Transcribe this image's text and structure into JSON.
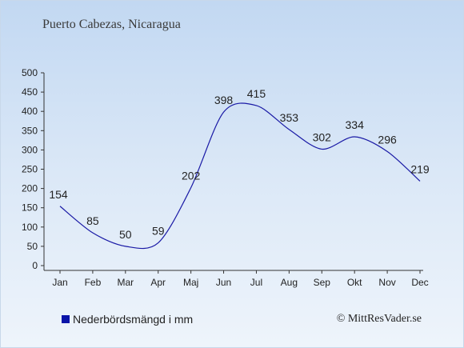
{
  "chart_data": {
    "type": "line",
    "title": "Puerto Cabezas, Nicaragua",
    "categories": [
      "Jan",
      "Feb",
      "Mar",
      "Apr",
      "Maj",
      "Jun",
      "Jul",
      "Aug",
      "Sep",
      "Okt",
      "Nov",
      "Dec"
    ],
    "series": [
      {
        "name": "Nederbördsmängd i mm",
        "values": [
          154,
          85,
          50,
          59,
          202,
          398,
          415,
          353,
          302,
          334,
          296,
          219
        ]
      }
    ],
    "yticks": [
      "0",
      "50",
      "100",
      "150",
      "200",
      "250",
      "300",
      "350",
      "400",
      "450",
      "500"
    ],
    "ylim": [
      0,
      500
    ],
    "grid": false,
    "legend_position": "bottom-left",
    "line_color": "#1a1aa6"
  },
  "footer": {
    "copyright": "© MittResVader.se"
  }
}
